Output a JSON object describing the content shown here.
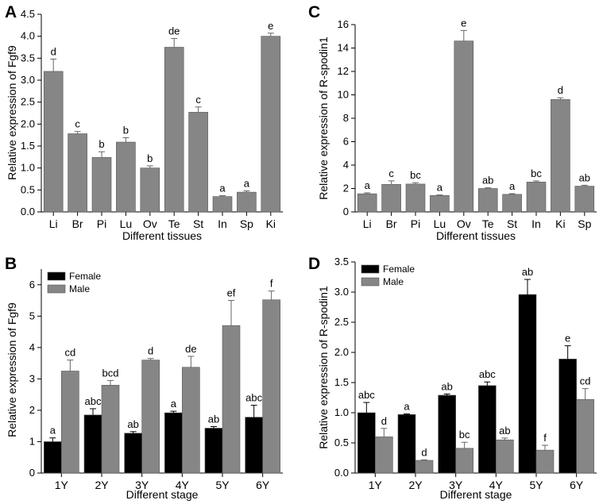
{
  "colors": {
    "gray": "#868686",
    "black": "#000000"
  },
  "chart_data": [
    {
      "panel": "A",
      "type": "bar",
      "categories": [
        "Li",
        "Br",
        "Pi",
        "Lu",
        "Ov",
        "Te",
        "St",
        "In",
        "Sp",
        "Ki"
      ],
      "values": [
        3.2,
        1.78,
        1.24,
        1.59,
        1.0,
        3.75,
        2.27,
        0.35,
        0.45,
        4.0
      ],
      "errors": [
        0.28,
        0.05,
        0.13,
        0.1,
        0.05,
        0.2,
        0.12,
        0.02,
        0.03,
        0.07
      ],
      "labels": [
        "d",
        "c",
        "b",
        "b",
        "b",
        "de",
        "c",
        "a",
        "a",
        "e"
      ],
      "xlabel": "Different tissues",
      "ylabel": "Relative expression of Fgf9",
      "ylim": [
        0,
        4.5
      ],
      "yticks": [
        "0.0",
        "0.5",
        "1.0",
        "1.5",
        "2.0",
        "2.5",
        "3.0",
        "3.5",
        "4.0",
        "4.5"
      ]
    },
    {
      "panel": "C",
      "type": "bar",
      "categories": [
        "Li",
        "Br",
        "Pi",
        "Lu",
        "Ov",
        "Te",
        "St",
        "In",
        "Ki",
        "Sp"
      ],
      "values": [
        1.55,
        2.35,
        2.38,
        1.4,
        14.6,
        2.0,
        1.5,
        2.55,
        9.6,
        2.2
      ],
      "errors": [
        0.08,
        0.3,
        0.12,
        0.05,
        0.9,
        0.06,
        0.06,
        0.1,
        0.15,
        0.08
      ],
      "labels": [
        "a",
        "c",
        "bc",
        "a",
        "e",
        "ab",
        "a",
        "bc",
        "d",
        "ab"
      ],
      "xlabel": "Different tissues",
      "ylabel": "Relative expression of R-spodin1",
      "ylim": [
        0,
        16
      ],
      "yticks": [
        "0",
        "2",
        "4",
        "6",
        "8",
        "10",
        "12",
        "14",
        "16"
      ]
    },
    {
      "panel": "B",
      "type": "bar",
      "categories": [
        "1Y",
        "2Y",
        "3Y",
        "4Y",
        "5Y",
        "6Y"
      ],
      "series": [
        {
          "name": "Female",
          "values": [
            1.0,
            1.85,
            1.27,
            1.92,
            1.43,
            1.78
          ],
          "errors": [
            0.12,
            0.2,
            0.05,
            0.05,
            0.05,
            0.38
          ],
          "labels": [
            "a",
            "abc",
            "ab",
            "a",
            "ab",
            "abc"
          ]
        },
        {
          "name": "Male",
          "values": [
            3.25,
            2.8,
            3.6,
            3.37,
            4.7,
            5.52
          ],
          "errors": [
            0.35,
            0.15,
            0.05,
            0.35,
            0.8,
            0.28
          ],
          "labels": [
            "cd",
            "bcd",
            "d",
            "de",
            "ef",
            "f"
          ]
        }
      ],
      "xlabel": "Different stage",
      "ylabel": "Relative expression of Fgf9",
      "ylim": [
        0,
        6.5
      ],
      "yticks": [
        "0",
        "1",
        "2",
        "3",
        "4",
        "5",
        "6"
      ]
    },
    {
      "panel": "D",
      "type": "bar",
      "categories": [
        "1Y",
        "2Y",
        "3Y",
        "4Y",
        "5Y",
        "6Y"
      ],
      "series": [
        {
          "name": "Female",
          "values": [
            1.0,
            0.97,
            1.29,
            1.45,
            2.96,
            1.89
          ],
          "errors": [
            0.17,
            0.01,
            0.02,
            0.06,
            0.25,
            0.22
          ],
          "labels": [
            "abc",
            "a",
            "ab",
            "abc",
            "ab",
            "e"
          ]
        },
        {
          "name": "Male",
          "values": [
            0.6,
            0.21,
            0.41,
            0.55,
            0.38,
            1.22
          ],
          "errors": [
            0.14,
            0.01,
            0.1,
            0.03,
            0.08,
            0.18
          ],
          "labels": [
            "d",
            "d",
            "bc",
            "ab",
            "f",
            "cd"
          ]
        }
      ],
      "xlabel": "Different stage",
      "ylabel": "Relative expression of R-spodin1",
      "ylim": [
        0,
        3.5
      ],
      "yticks": [
        "0.0",
        "0.5",
        "1.0",
        "1.5",
        "2.0",
        "2.5",
        "3.0",
        "3.5"
      ]
    }
  ]
}
